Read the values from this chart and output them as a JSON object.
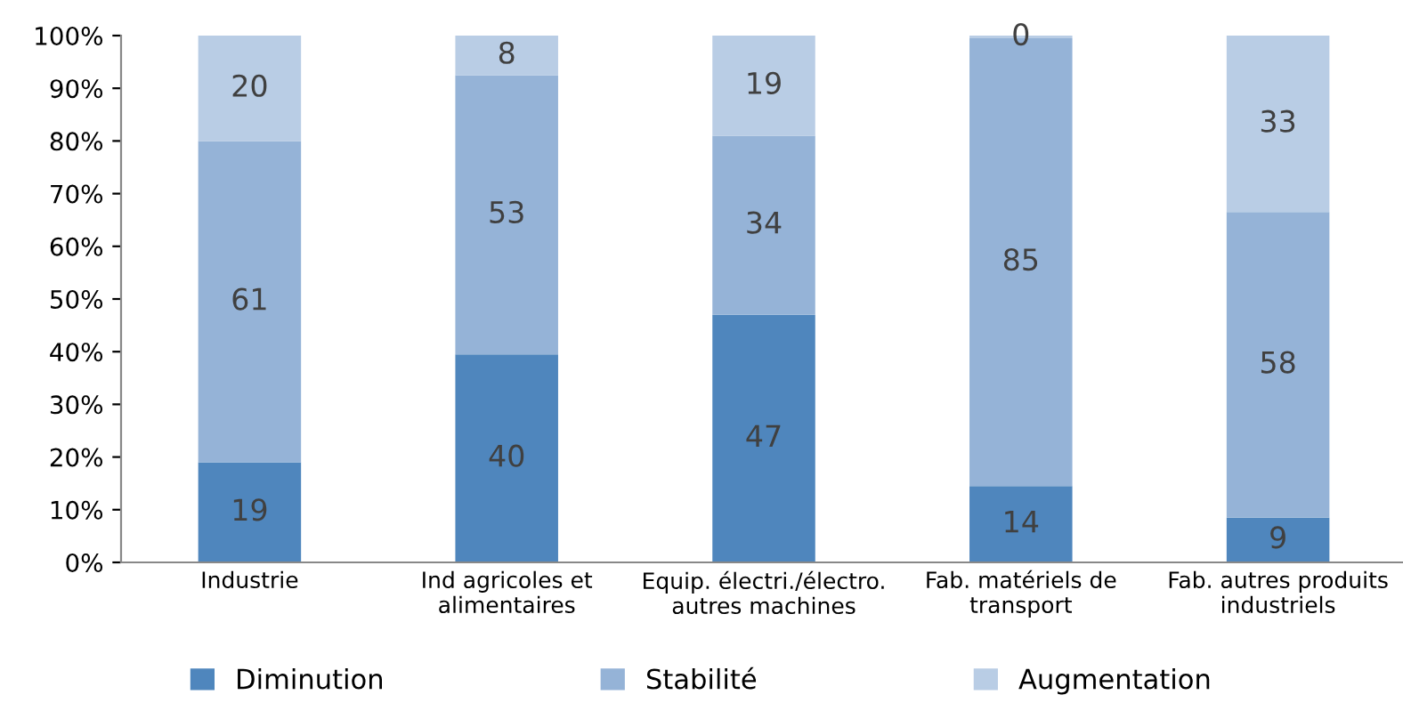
{
  "chart_data": {
    "type": "bar",
    "stacked": true,
    "categories": [
      "Industrie",
      "Ind agricoles et\nalimentaires",
      "Equip. électri./électro.\nautres machines",
      "Fab. matériels de\ntransport",
      "Fab. autres produits\nindustriels"
    ],
    "series": [
      {
        "name": "Diminution",
        "color": "#4f86bd",
        "values": [
          19,
          39.5,
          47,
          14.5,
          8.5
        ],
        "value_labels": [
          "19",
          "40",
          "47",
          "14",
          "9"
        ]
      },
      {
        "name": "Stabilité",
        "color": "#95b3d7",
        "values": [
          61,
          53,
          34,
          85,
          58
        ],
        "value_labels": [
          "61",
          "53",
          "34",
          "85",
          "58"
        ]
      },
      {
        "name": "Augmentation",
        "color": "#b9cde5",
        "values": [
          20,
          7.5,
          19,
          0.5,
          33.5
        ],
        "value_labels": [
          "20",
          "8",
          "19",
          "0",
          "33"
        ]
      }
    ],
    "ylim": [
      0,
      100
    ],
    "yticks": [
      {
        "value": 0,
        "label": "0%"
      },
      {
        "value": 10,
        "label": "10%"
      },
      {
        "value": 20,
        "label": "20%"
      },
      {
        "value": 30,
        "label": "30%"
      },
      {
        "value": 40,
        "label": "40%"
      },
      {
        "value": 50,
        "label": "50%"
      },
      {
        "value": 60,
        "label": "60%"
      },
      {
        "value": 70,
        "label": "70%"
      },
      {
        "value": 80,
        "label": "80%"
      },
      {
        "value": 90,
        "label": "90%"
      },
      {
        "value": 100,
        "label": "100%"
      }
    ],
    "grid": false,
    "legend": "bottom"
  }
}
